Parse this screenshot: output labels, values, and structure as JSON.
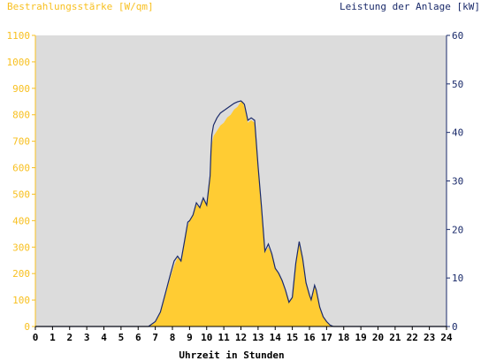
{
  "chart_data": {
    "type": "area",
    "title_left": "Bestrahlungsstärke [W/qm]",
    "title_right": "Leistung der Anlage [kW]",
    "xlabel": "Uhrzeit in Stunden",
    "x_ticks": [
      "0",
      "1",
      "2",
      "3",
      "4",
      "5",
      "6",
      "7",
      "8",
      "9",
      "10",
      "11",
      "12",
      "13",
      "14",
      "15",
      "16",
      "17",
      "18",
      "19",
      "20",
      "21",
      "22",
      "23",
      "24"
    ],
    "xlim": [
      0,
      24
    ],
    "y_left_ticks": [
      "0",
      "100",
      "200",
      "300",
      "400",
      "500",
      "600",
      "700",
      "800",
      "900",
      "1000",
      "1100"
    ],
    "ylim_left": [
      0,
      1100
    ],
    "y_right_ticks": [
      "0",
      "10",
      "20",
      "30",
      "40",
      "50",
      "60"
    ],
    "ylim_right": [
      0,
      60
    ],
    "colors": {
      "irradiance": "#ffcc33",
      "power": "#1a2a6a",
      "plot_bg": "#dcdcdc",
      "left_axis": "#f8c020",
      "right_axis": "#1a2a6a"
    },
    "series": [
      {
        "name": "Bestrahlungsstärke",
        "axis": "left",
        "x": [
          6.6,
          7.0,
          7.3,
          7.6,
          7.9,
          8.1,
          8.3,
          8.5,
          8.7,
          8.9,
          9.0,
          9.2,
          9.4,
          9.6,
          9.8,
          10.0,
          10.2,
          10.25,
          10.3,
          10.4,
          10.6,
          10.8,
          11.0,
          11.2,
          11.4,
          11.6,
          11.8,
          12.0,
          12.1,
          12.2,
          12.4,
          12.6,
          12.8,
          13.0,
          13.2,
          13.4,
          13.6,
          13.8,
          14.0,
          14.2,
          14.4,
          14.6,
          14.8,
          15.0,
          15.2,
          15.4,
          15.6,
          15.8,
          16.0,
          16.1,
          16.2,
          16.3,
          16.4,
          16.6,
          16.8,
          17.0,
          17.2,
          17.4,
          17.6,
          17.8,
          18.0,
          18.2,
          18.5
        ],
        "values": [
          0,
          15,
          50,
          120,
          190,
          230,
          260,
          250,
          320,
          380,
          400,
          420,
          460,
          450,
          480,
          460,
          560,
          640,
          690,
          720,
          740,
          760,
          770,
          790,
          800,
          820,
          830,
          850,
          850,
          830,
          770,
          780,
          770,
          600,
          450,
          280,
          300,
          270,
          220,
          200,
          170,
          130,
          90,
          110,
          240,
          320,
          250,
          160,
          120,
          100,
          130,
          160,
          140,
          70,
          40,
          20,
          5,
          0,
          0,
          0,
          0,
          0,
          0
        ]
      },
      {
        "name": "Leistung",
        "axis": "right",
        "x": [
          6.6,
          7.0,
          7.3,
          7.6,
          7.9,
          8.1,
          8.3,
          8.5,
          8.7,
          8.9,
          9.0,
          9.2,
          9.4,
          9.6,
          9.8,
          10.0,
          10.2,
          10.25,
          10.3,
          10.4,
          10.6,
          10.8,
          11.0,
          11.2,
          11.4,
          11.6,
          11.8,
          12.0,
          12.1,
          12.2,
          12.4,
          12.6,
          12.8,
          13.0,
          13.2,
          13.4,
          13.6,
          13.8,
          14.0,
          14.2,
          14.4,
          14.6,
          14.8,
          15.0,
          15.2,
          15.4,
          15.6,
          15.8,
          16.0,
          16.1,
          16.2,
          16.3,
          16.4,
          16.6,
          16.8,
          17.0,
          17.2,
          17.4,
          17.6,
          17.8,
          18.0,
          18.2,
          18.5
        ],
        "values": [
          0,
          1.0,
          3.0,
          7.0,
          11.0,
          13.5,
          14.5,
          13.5,
          17.5,
          21.5,
          21.8,
          23.0,
          25.5,
          24.5,
          26.5,
          25.0,
          31.0,
          36.0,
          39.5,
          41.5,
          43.0,
          44.0,
          44.5,
          45.0,
          45.5,
          46.0,
          46.3,
          46.5,
          46.2,
          45.8,
          42.5,
          43.0,
          42.5,
          33.0,
          24.5,
          15.5,
          17.0,
          15.0,
          12.0,
          11.0,
          9.5,
          7.5,
          5.0,
          6.0,
          13.0,
          17.5,
          14.0,
          9.0,
          6.5,
          5.5,
          7.0,
          8.5,
          7.5,
          4.0,
          2.0,
          1.0,
          0.3,
          0,
          0,
          0,
          0,
          0,
          0
        ]
      }
    ]
  }
}
